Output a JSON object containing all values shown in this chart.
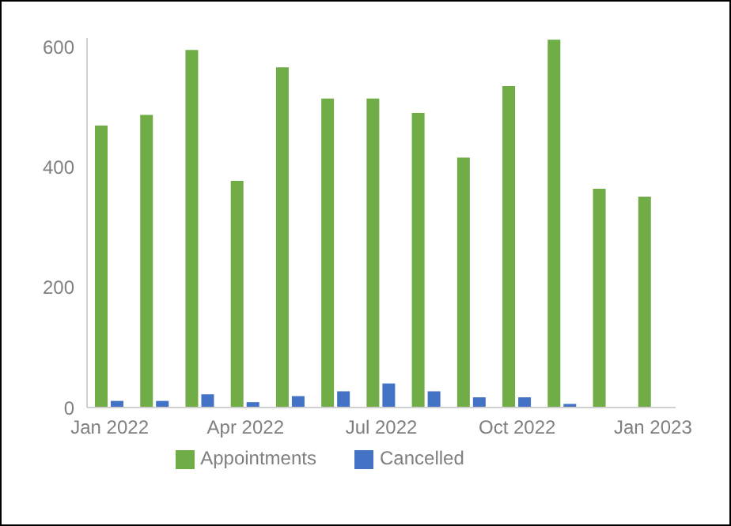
{
  "chart_data": {
    "type": "bar",
    "categories": [
      "Jan 2022",
      null,
      null,
      "Apr 2022",
      null,
      null,
      "Jul 2022",
      null,
      null,
      "Oct 2022",
      null,
      null,
      "Jan 2023"
    ],
    "series": [
      {
        "name": "Appointments",
        "color": "#70ad47",
        "values": [
          469,
          487,
          595,
          377,
          566,
          514,
          514,
          490,
          416,
          535,
          612,
          364,
          351
        ]
      },
      {
        "name": "Cancelled",
        "color": "#4472c4",
        "values": [
          11,
          11,
          22,
          9,
          19,
          27,
          40,
          27,
          17,
          17,
          6,
          null,
          null
        ]
      }
    ],
    "ylim": [
      0,
      615
    ],
    "yticks": [
      0,
      200,
      400,
      600
    ],
    "grid": false,
    "legend": "bottom"
  }
}
